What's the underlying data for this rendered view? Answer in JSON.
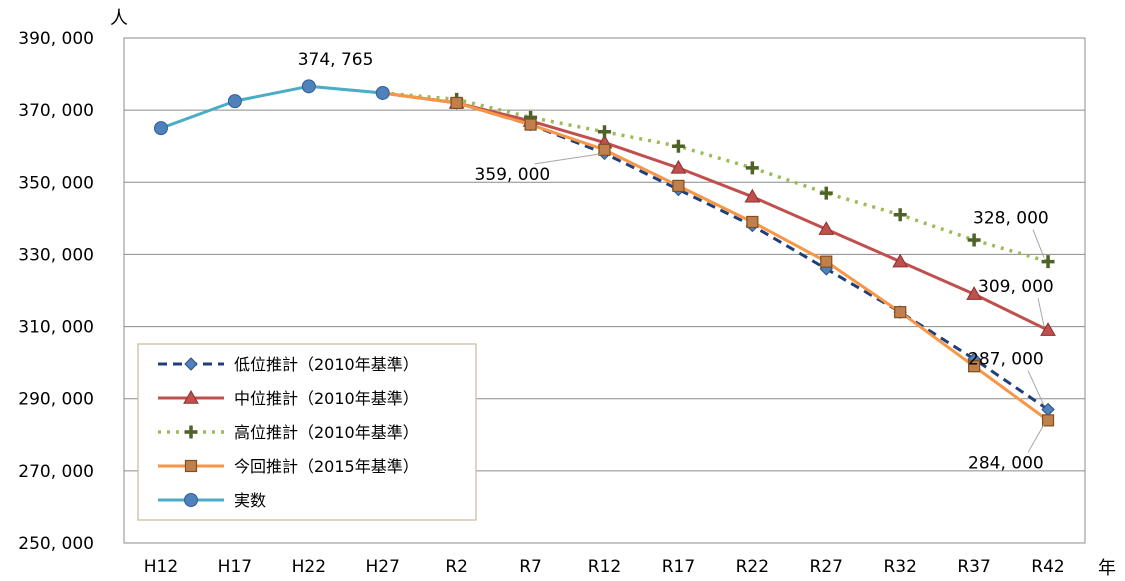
{
  "chart_data": {
    "type": "line",
    "y_unit_label": "人",
    "x_unit_label": "年",
    "categories": [
      "H12",
      "H17",
      "H22",
      "H27",
      "R2",
      "R7",
      "R12",
      "R17",
      "R22",
      "R27",
      "R32",
      "R37",
      "R42"
    ],
    "ylim": [
      250000,
      390000
    ],
    "y_ticks": [
      {
        "value": 250000,
        "label": "250, 000"
      },
      {
        "value": 270000,
        "label": "270, 000"
      },
      {
        "value": 290000,
        "label": "290, 000"
      },
      {
        "value": 310000,
        "label": "310, 000"
      },
      {
        "value": 330000,
        "label": "330, 000"
      },
      {
        "value": 350000,
        "label": "350, 000"
      },
      {
        "value": 370000,
        "label": "370, 000"
      },
      {
        "value": 390000,
        "label": "390, 000"
      }
    ],
    "grid": true,
    "legend_position": "bottom-left",
    "series": [
      {
        "key": "low",
        "name": "低位推計（2010年基準）",
        "color": "#1F3F7A",
        "marker_color": "#4F81BD",
        "marker": "diamond",
        "dash": "dashed",
        "values": [
          null,
          null,
          null,
          374765,
          372000,
          366000,
          358000,
          348000,
          338000,
          326000,
          314000,
          301000,
          287000
        ]
      },
      {
        "key": "mid",
        "name": "中位推計（2010年基準）",
        "color": "#C0504D",
        "marker_color": "#C0504D",
        "marker": "triangle",
        "dash": "solid",
        "values": [
          null,
          null,
          null,
          374765,
          372000,
          367000,
          361000,
          354000,
          346000,
          337000,
          328000,
          319000,
          309000
        ]
      },
      {
        "key": "high",
        "name": "高位推計（2010年基準）",
        "color": "#9BBB59",
        "marker_color": "#4F6228",
        "marker": "plus",
        "dash": "dotted",
        "values": [
          null,
          null,
          null,
          374765,
          373000,
          368000,
          364000,
          360000,
          354000,
          347000,
          341000,
          334000,
          328000
        ]
      },
      {
        "key": "current",
        "name": "今回推計（2015年基準）",
        "color": "#F79646",
        "marker_color": "#C0804D",
        "marker": "square",
        "dash": "solid",
        "values": [
          null,
          null,
          null,
          374765,
          372000,
          366000,
          359000,
          349000,
          339000,
          328000,
          314000,
          299000,
          284000
        ]
      },
      {
        "key": "actual",
        "name": "実数",
        "color": "#4BACC6",
        "marker_color": "#4F81BD",
        "marker": "circle",
        "dash": "solid",
        "values": [
          365000,
          372500,
          376600,
          374765,
          null,
          null,
          null,
          null,
          null,
          null,
          null,
          null,
          null
        ]
      }
    ],
    "annotations": [
      {
        "text": "374, 765",
        "series": "actual",
        "index": 3
      },
      {
        "text": "359, 000",
        "series": "current",
        "index": 6
      },
      {
        "text": "328, 000",
        "series": "high",
        "index": 12
      },
      {
        "text": "309, 000",
        "series": "mid",
        "index": 12
      },
      {
        "text": "287, 000",
        "series": "low",
        "index": 12
      },
      {
        "text": "284, 000",
        "series": "current",
        "index": 12
      }
    ]
  }
}
